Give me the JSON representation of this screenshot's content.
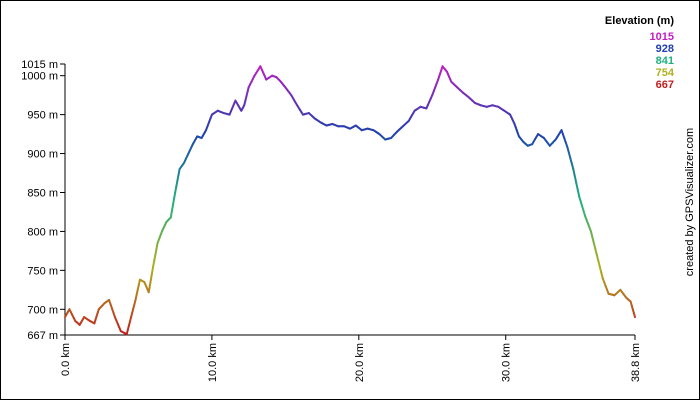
{
  "chart_data": {
    "type": "line",
    "title": "",
    "xlabel": "",
    "ylabel": "",
    "x_unit": "km",
    "y_unit": "m",
    "xlim": [
      0,
      38.8
    ],
    "ylim": [
      667,
      1015
    ],
    "x_ticks": [
      0,
      10,
      20,
      30,
      38.8
    ],
    "x_tick_labels": [
      "0.0 km",
      "10.0 km",
      "20.0 km",
      "30.0 km",
      "38.8 km"
    ],
    "y_ticks": [
      667,
      700,
      750,
      800,
      850,
      900,
      950,
      1000,
      1015
    ],
    "y_tick_labels": [
      "667 m",
      "700 m",
      "750 m",
      "800 m",
      "850 m",
      "900 m",
      "950 m",
      "1000 m",
      "1015 m"
    ],
    "grid": false,
    "legend": {
      "title": "Elevation (m)",
      "position": "top-right",
      "entries": [
        {
          "label": "1015",
          "color": "#c020c0"
        },
        {
          "label": "928",
          "color": "#2040b0"
        },
        {
          "label": "841",
          "color": "#20b080"
        },
        {
          "label": "754",
          "color": "#b0b020"
        },
        {
          "label": "667",
          "color": "#c02020"
        }
      ]
    },
    "color_scale": {
      "stops": [
        {
          "value": 667,
          "color": "#c02020"
        },
        {
          "value": 754,
          "color": "#b0b020"
        },
        {
          "value": 841,
          "color": "#20b080"
        },
        {
          "value": 928,
          "color": "#2040b0"
        },
        {
          "value": 1015,
          "color": "#c020c0"
        }
      ]
    },
    "credit": "created by GPSVisualizer.com",
    "series": [
      {
        "x": [
          0,
          0.3,
          0.7,
          1.0,
          1.3,
          1.7,
          2.0,
          2.3,
          2.7,
          3.0,
          3.4,
          3.8,
          4.2,
          4.5,
          4.8,
          5.1,
          5.4,
          5.7,
          6.0,
          6.3,
          6.6,
          6.9,
          7.2,
          7.5,
          7.8,
          8.1,
          8.4,
          8.7,
          9.0,
          9.3,
          9.6,
          10.0,
          10.4,
          10.8,
          11.2,
          11.6,
          12.0,
          12.2,
          12.5,
          12.9,
          13.3,
          13.7,
          14.1,
          14.4,
          14.7,
          15.0,
          15.4,
          15.8,
          16.2,
          16.6,
          17.0,
          17.4,
          17.8,
          18.2,
          18.6,
          19.0,
          19.4,
          19.8,
          20.2,
          20.6,
          21.0,
          21.4,
          21.8,
          22.2,
          22.6,
          23.0,
          23.4,
          23.8,
          24.2,
          24.6,
          25.0,
          25.4,
          25.7,
          26.0,
          26.3,
          26.7,
          27.1,
          27.5,
          27.9,
          28.3,
          28.7,
          29.1,
          29.5,
          29.9,
          30.3,
          30.6,
          30.9,
          31.2,
          31.5,
          31.8,
          32.2,
          32.6,
          33.0,
          33.4,
          33.8,
          34.2,
          34.6,
          35.0,
          35.4,
          35.8,
          36.2,
          36.6,
          37.0,
          37.4,
          37.8,
          38.2,
          38.5,
          38.8
        ],
        "y": [
          690,
          700,
          685,
          680,
          690,
          685,
          682,
          700,
          708,
          712,
          690,
          672,
          668,
          690,
          712,
          738,
          735,
          722,
          755,
          785,
          800,
          812,
          818,
          850,
          880,
          888,
          900,
          912,
          922,
          920,
          930,
          950,
          955,
          952,
          950,
          968,
          955,
          962,
          985,
          1000,
          1012,
          995,
          1000,
          998,
          992,
          985,
          975,
          962,
          950,
          952,
          945,
          940,
          936,
          938,
          935,
          935,
          932,
          936,
          930,
          932,
          930,
          925,
          918,
          920,
          928,
          935,
          942,
          955,
          960,
          958,
          975,
          995,
          1012,
          1005,
          992,
          985,
          978,
          972,
          965,
          962,
          960,
          962,
          960,
          955,
          950,
          938,
          922,
          915,
          910,
          912,
          925,
          920,
          910,
          918,
          930,
          908,
          880,
          845,
          820,
          800,
          770,
          740,
          720,
          718,
          725,
          715,
          710,
          690
        ]
      }
    ]
  }
}
